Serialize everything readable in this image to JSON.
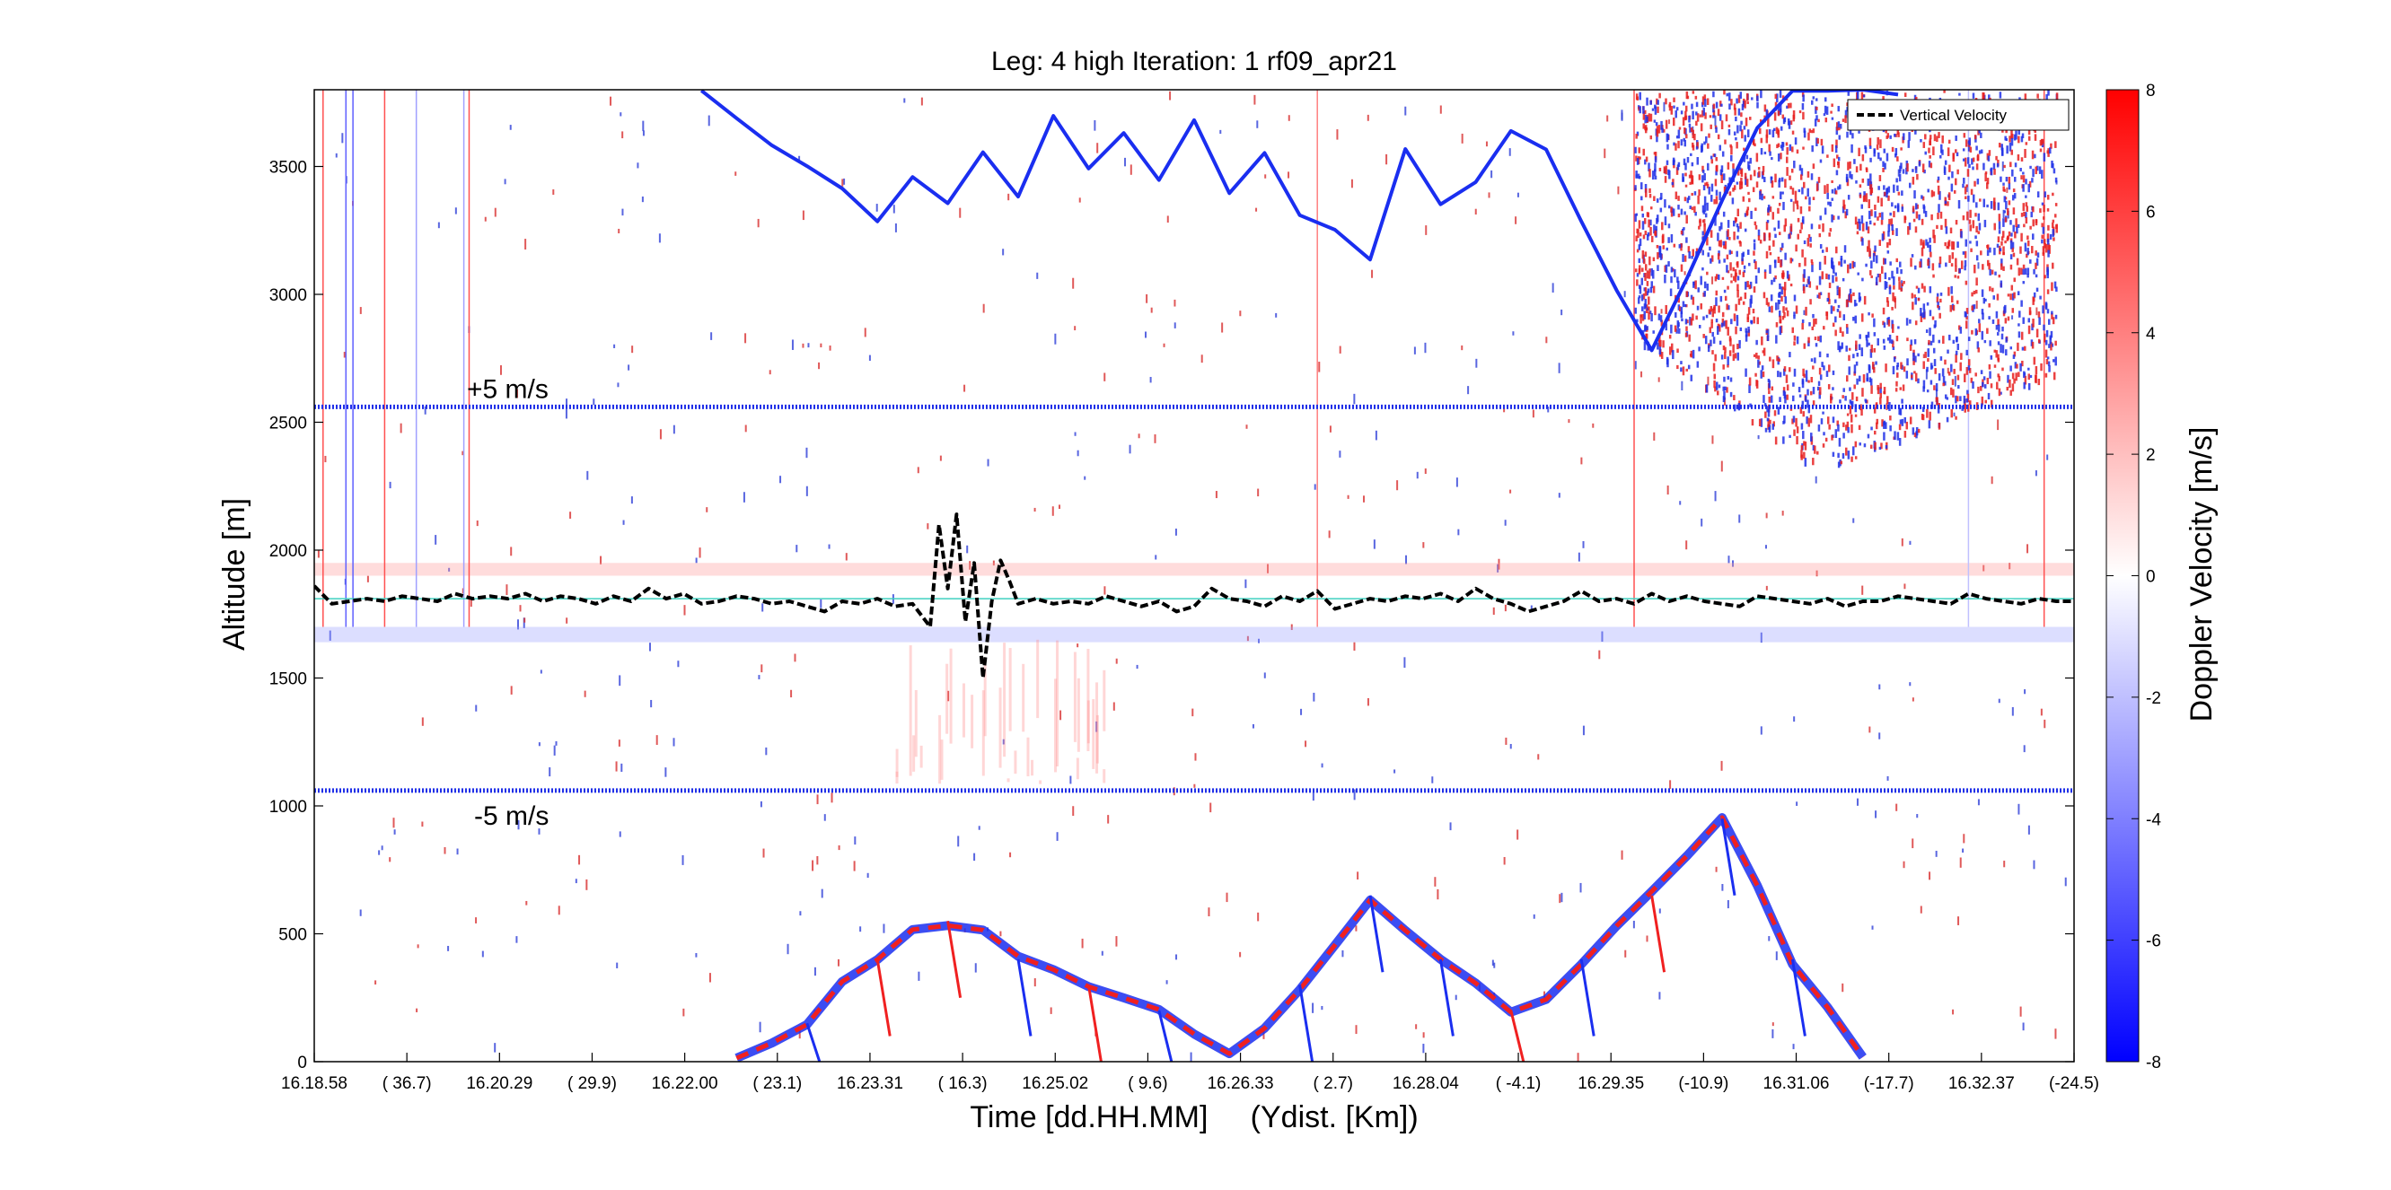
{
  "chart_data": {
    "type": "heatmap",
    "title": "Leg: 4 high Iteration: 1  rf09_apr21",
    "xlabel": "Time [dd.HH.MM]     (Ydist. [Km])",
    "ylabel": "Altitude [m]",
    "ylim": [
      0,
      3800
    ],
    "x_tick_labels": [
      "16.18.58",
      "( 36.7)",
      "16.20.29",
      "( 29.9)",
      "16.22.00",
      "( 23.1)",
      "16.23.31",
      "( 16.3)",
      "16.25.02",
      "( 9.6)",
      "16.26.33",
      "( 2.7)",
      "16.28.04",
      "( -4.1)",
      "16.29.35",
      "(-10.9)",
      "16.31.06",
      "(-17.7)",
      "16.32.37",
      "(-24.5)"
    ],
    "y_ticks": [
      0,
      500,
      1000,
      1500,
      2000,
      2500,
      3000,
      3500
    ],
    "colorbar": {
      "label": "Doppler Velocity [m/s]",
      "range": [
        -8,
        8
      ],
      "ticks": [
        -8,
        -6,
        -4,
        -2,
        0,
        2,
        4,
        6,
        8
      ],
      "colormap": [
        "#0000ff",
        "#ffffff",
        "#ff0000"
      ]
    },
    "legend": {
      "placement": "top-right",
      "entries": [
        "Vertical Velocity"
      ]
    },
    "annotations": [
      {
        "text": "+5 m/s",
        "altitude": 2560
      },
      {
        "text": "-5 m/s",
        "altitude": 1060
      }
    ],
    "reference_lines": {
      "plus5_altitude": 2560,
      "minus5_altitude": 1060,
      "flight_altitude": 1810
    },
    "series": [
      {
        "name": "Vertical Velocity",
        "style": "dashed-black",
        "t": [
          0,
          0.01,
          0.02,
          0.03,
          0.04,
          0.05,
          0.06,
          0.07,
          0.08,
          0.09,
          0.1,
          0.11,
          0.12,
          0.13,
          0.14,
          0.15,
          0.16,
          0.17,
          0.18,
          0.19,
          0.2,
          0.21,
          0.22,
          0.23,
          0.24,
          0.25,
          0.26,
          0.27,
          0.28,
          0.29,
          0.3,
          0.31,
          0.32,
          0.33,
          0.34,
          0.35,
          0.355,
          0.36,
          0.365,
          0.37,
          0.375,
          0.38,
          0.385,
          0.39,
          0.395,
          0.4,
          0.405,
          0.41,
          0.42,
          0.43,
          0.44,
          0.45,
          0.46,
          0.47,
          0.48,
          0.49,
          0.5,
          0.51,
          0.52,
          0.53,
          0.54,
          0.55,
          0.56,
          0.57,
          0.58,
          0.59,
          0.6,
          0.61,
          0.62,
          0.63,
          0.64,
          0.65,
          0.66,
          0.67,
          0.68,
          0.69,
          0.7,
          0.71,
          0.72,
          0.73,
          0.74,
          0.75,
          0.76,
          0.77,
          0.78,
          0.79,
          0.8,
          0.81,
          0.82,
          0.83,
          0.84,
          0.85,
          0.86,
          0.87,
          0.88,
          0.89,
          0.9,
          0.91,
          0.92,
          0.93,
          0.94,
          0.95,
          0.96,
          0.97,
          0.98,
          0.99,
          1.0
        ],
        "altitude": [
          1860,
          1790,
          1800,
          1810,
          1800,
          1820,
          1810,
          1800,
          1830,
          1810,
          1820,
          1810,
          1830,
          1800,
          1820,
          1810,
          1790,
          1820,
          1800,
          1850,
          1810,
          1830,
          1790,
          1800,
          1820,
          1810,
          1790,
          1800,
          1780,
          1760,
          1800,
          1790,
          1810,
          1780,
          1790,
          1700,
          2100,
          1850,
          2140,
          1720,
          1950,
          1500,
          1800,
          1960,
          1880,
          1790,
          1800,
          1810,
          1790,
          1800,
          1790,
          1820,
          1800,
          1780,
          1800,
          1760,
          1780,
          1850,
          1810,
          1800,
          1780,
          1820,
          1800,
          1840,
          1770,
          1790,
          1810,
          1800,
          1820,
          1810,
          1830,
          1800,
          1850,
          1810,
          1790,
          1760,
          1780,
          1800,
          1840,
          1800,
          1810,
          1790,
          1830,
          1800,
          1820,
          1800,
          1790,
          1780,
          1820,
          1810,
          1800,
          1790,
          1810,
          1780,
          1800,
          1800,
          1820,
          1810,
          1800,
          1790,
          1830,
          1810,
          1800,
          1790,
          1810,
          1800,
          1800
        ]
      },
      {
        "name": "",
        "style": "surface-echo-upper",
        "t": [
          0.22,
          0.24,
          0.26,
          0.28,
          0.3,
          0.32,
          0.34,
          0.36,
          0.38,
          0.4,
          0.42,
          0.44,
          0.46,
          0.48,
          0.5,
          0.52,
          0.54,
          0.56,
          0.58,
          0.6,
          0.62,
          0.64,
          0.66,
          0.68,
          0.7,
          0.72,
          0.74,
          0.76,
          0.78,
          0.8,
          0.82,
          0.84,
          0.86,
          0.88,
          0.9
        ],
        "altitude": [
          3800,
          3700,
          3600,
          3500,
          3400,
          3300,
          3450,
          3350,
          3550,
          3400,
          3700,
          3500,
          3650,
          3450,
          3700,
          3400,
          3550,
          3300,
          3250,
          3150,
          3550,
          3350,
          3450,
          3650,
          3550,
          3300,
          3000,
          2800,
          3050,
          3350,
          3650,
          3800,
          3800,
          3800,
          3800
        ]
      },
      {
        "name": "",
        "style": "surface-echo-lower",
        "t": [
          0.24,
          0.26,
          0.28,
          0.3,
          0.32,
          0.34,
          0.36,
          0.38,
          0.4,
          0.42,
          0.44,
          0.46,
          0.48,
          0.5,
          0.52,
          0.54,
          0.56,
          0.58,
          0.6,
          0.62,
          0.64,
          0.66,
          0.68,
          0.7,
          0.72,
          0.74,
          0.76,
          0.78,
          0.8,
          0.82,
          0.84,
          0.86,
          0.88
        ],
        "altitude": [
          0,
          60,
          150,
          300,
          400,
          500,
          550,
          500,
          400,
          350,
          300,
          250,
          200,
          100,
          50,
          150,
          300,
          450,
          650,
          500,
          400,
          300,
          200,
          250,
          400,
          550,
          650,
          800,
          950,
          700,
          400,
          200,
          0
        ]
      }
    ],
    "noise_region": {
      "t_start": 0.75,
      "t_end": 0.99,
      "altitude_top": 3800,
      "altitude_bottom": 2400
    }
  }
}
